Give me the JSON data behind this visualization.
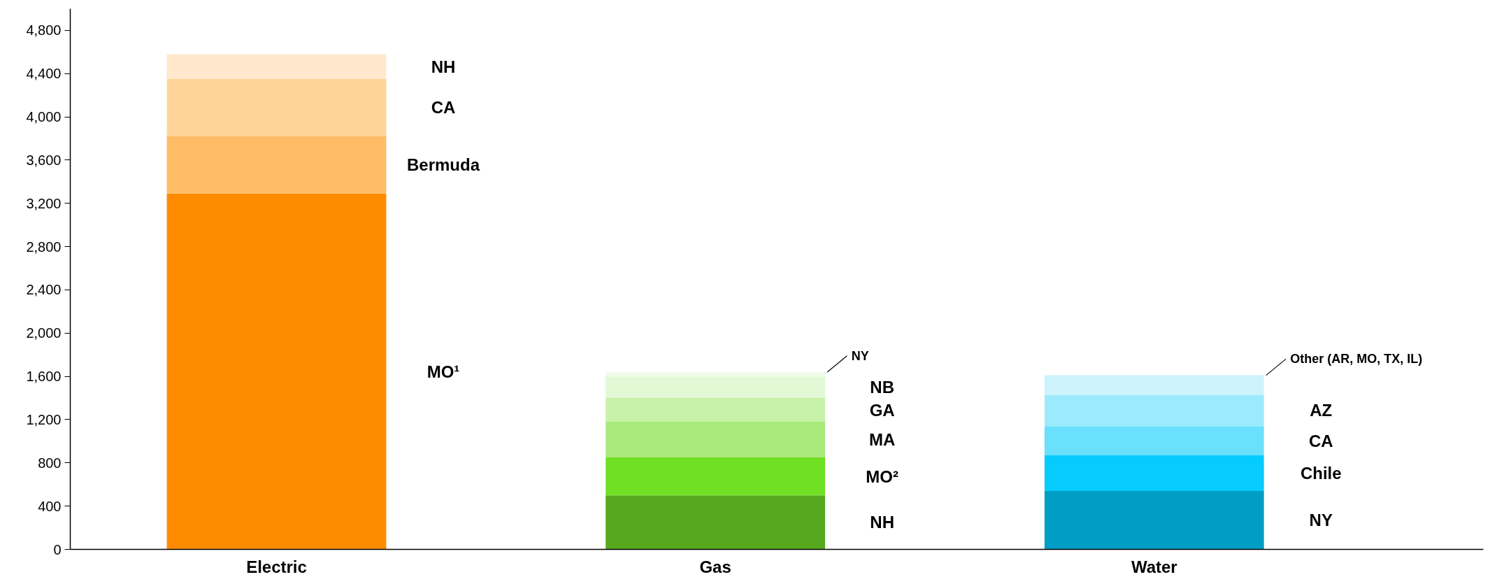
{
  "chart_data": {
    "type": "bar",
    "stacked": true,
    "categories": [
      "Electric",
      "Gas",
      "Water"
    ],
    "series": [
      {
        "name": "MO¹",
        "color": "#ff8c00",
        "values": [
          3290,
          null,
          null
        ]
      },
      {
        "name": "Bermuda",
        "color": "#ffbb66",
        "values": [
          530,
          null,
          null
        ]
      },
      {
        "name": "CA",
        "color": "#ffd499",
        "values": [
          530,
          null,
          null
        ]
      },
      {
        "name": "NH",
        "color": "#ffe8cc",
        "values": [
          230,
          null,
          null
        ]
      },
      {
        "name": "NH",
        "color": "#56a91d",
        "values": [
          null,
          500,
          null
        ]
      },
      {
        "name": "MO²",
        "color": "#70e024",
        "values": [
          null,
          350,
          null
        ]
      },
      {
        "name": "MA",
        "color": "#aaea7c",
        "values": [
          null,
          330,
          null
        ]
      },
      {
        "name": "GA",
        "color": "#c8f2a8",
        "values": [
          null,
          220,
          null
        ]
      },
      {
        "name": "NB",
        "color": "#e3f8d5",
        "values": [
          null,
          200,
          null
        ]
      },
      {
        "name": "NY",
        "color": "#f0fbe8",
        "values": [
          null,
          40,
          null
        ]
      },
      {
        "name": "NY",
        "color": "#009ec3",
        "values": [
          null,
          null,
          540
        ]
      },
      {
        "name": "Chile",
        "color": "#06cbfd",
        "values": [
          null,
          null,
          330
        ]
      },
      {
        "name": "CA",
        "color": "#6ae0fd",
        "values": [
          null,
          null,
          270
        ]
      },
      {
        "name": "AZ",
        "color": "#9eeafd",
        "values": [
          null,
          null,
          290
        ]
      },
      {
        "name": "Other (AR, MO, TX, IL)",
        "color": "#cdf4fd",
        "values": [
          null,
          null,
          180
        ]
      }
    ],
    "ylim": [
      0,
      5000
    ],
    "yticks": [
      0,
      400,
      800,
      {
        "value": 1200,
        "label": "1,200"
      },
      {
        "value": 1600,
        "label": "1,600"
      },
      {
        "value": 2000,
        "label": "2,000"
      },
      {
        "value": 2400,
        "label": "2,400"
      },
      {
        "value": 2800,
        "label": "2,800"
      },
      {
        "value": 3200,
        "label": "3,200"
      },
      {
        "value": 3600,
        "label": "3,600"
      },
      {
        "value": 4000,
        "label": "4,000"
      },
      {
        "value": 4400,
        "label": "4,400"
      },
      {
        "value": 4800,
        "label": "4,800"
      }
    ],
    "grid": false
  }
}
